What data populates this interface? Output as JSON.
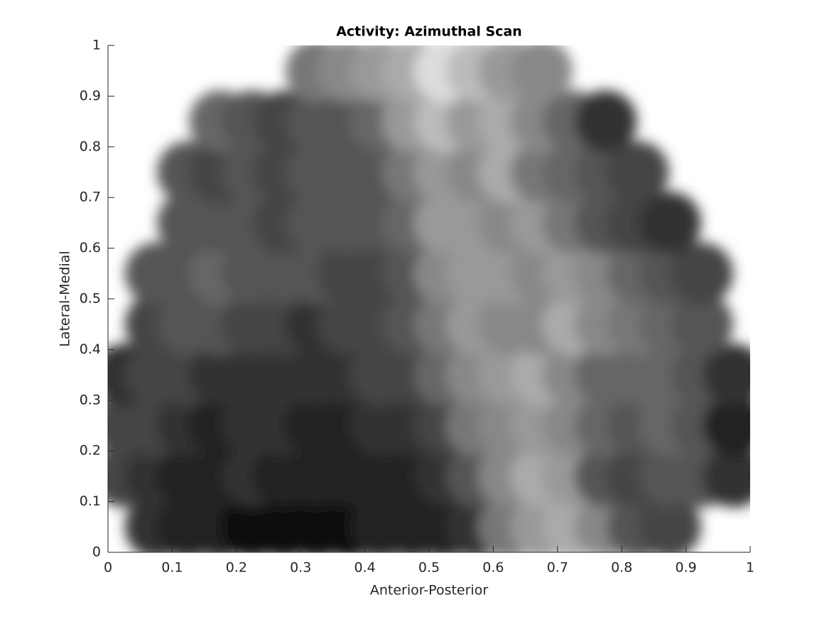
{
  "chart_data": {
    "type": "scatter",
    "title": "Activity: Azimuthal Scan",
    "xlabel": "Anterior-Posterior",
    "ylabel": "Lateral-Medial",
    "xlim": [
      0,
      1
    ],
    "ylim": [
      0,
      1
    ],
    "xticks": [
      0,
      0.1,
      0.2,
      0.3,
      0.4,
      0.5,
      0.6,
      0.7,
      0.8,
      0.9,
      1
    ],
    "yticks": [
      0,
      0.1,
      0.2,
      0.3,
      0.4,
      0.5,
      0.6,
      0.7,
      0.8,
      0.9,
      1
    ],
    "grid": false,
    "x": [
      0.075,
      0.125,
      0.175,
      0.225,
      0.275,
      0.325,
      0.375,
      0.425,
      0.475,
      0.525,
      0.575,
      0.625,
      0.675,
      0.725,
      0.775,
      0.825,
      0.875,
      0.025,
      0.075,
      0.125,
      0.175,
      0.225,
      0.275,
      0.325,
      0.375,
      0.425,
      0.475,
      0.525,
      0.575,
      0.625,
      0.675,
      0.725,
      0.775,
      0.825,
      0.875,
      0.925,
      0.975,
      0.025,
      0.075,
      0.125,
      0.175,
      0.225,
      0.275,
      0.325,
      0.375,
      0.425,
      0.475,
      0.525,
      0.575,
      0.625,
      0.675,
      0.725,
      0.775,
      0.825,
      0.875,
      0.925,
      0.975,
      0.025,
      0.075,
      0.125,
      0.175,
      0.225,
      0.275,
      0.325,
      0.375,
      0.425,
      0.475,
      0.525,
      0.575,
      0.625,
      0.675,
      0.725,
      0.775,
      0.825,
      0.875,
      0.925,
      0.975,
      0.075,
      0.125,
      0.175,
      0.225,
      0.275,
      0.325,
      0.375,
      0.425,
      0.475,
      0.525,
      0.575,
      0.625,
      0.675,
      0.725,
      0.775,
      0.825,
      0.875,
      0.925,
      0.075,
      0.125,
      0.175,
      0.225,
      0.275,
      0.325,
      0.375,
      0.425,
      0.475,
      0.525,
      0.575,
      0.625,
      0.675,
      0.725,
      0.775,
      0.825,
      0.875,
      0.925,
      0.125,
      0.175,
      0.225,
      0.275,
      0.325,
      0.375,
      0.425,
      0.475,
      0.525,
      0.575,
      0.625,
      0.675,
      0.725,
      0.775,
      0.825,
      0.875,
      0.125,
      0.175,
      0.225,
      0.275,
      0.325,
      0.375,
      0.425,
      0.475,
      0.525,
      0.575,
      0.625,
      0.675,
      0.725,
      0.775,
      0.825,
      0.175,
      0.225,
      0.275,
      0.325,
      0.375,
      0.425,
      0.475,
      0.525,
      0.575,
      0.625,
      0.675,
      0.725,
      0.775,
      0.325,
      0.375,
      0.425,
      0.475,
      0.525,
      0.575,
      0.625,
      0.675
    ],
    "y": [
      0.05,
      0.05,
      0.05,
      0.05,
      0.05,
      0.05,
      0.05,
      0.05,
      0.05,
      0.05,
      0.05,
      0.05,
      0.05,
      0.05,
      0.05,
      0.05,
      0.05,
      0.15,
      0.15,
      0.15,
      0.15,
      0.15,
      0.15,
      0.15,
      0.15,
      0.15,
      0.15,
      0.15,
      0.15,
      0.15,
      0.15,
      0.15,
      0.15,
      0.15,
      0.15,
      0.15,
      0.15,
      0.25,
      0.25,
      0.25,
      0.25,
      0.25,
      0.25,
      0.25,
      0.25,
      0.25,
      0.25,
      0.25,
      0.25,
      0.25,
      0.25,
      0.25,
      0.25,
      0.25,
      0.25,
      0.25,
      0.25,
      0.35,
      0.35,
      0.35,
      0.35,
      0.35,
      0.35,
      0.35,
      0.35,
      0.35,
      0.35,
      0.35,
      0.35,
      0.35,
      0.35,
      0.35,
      0.35,
      0.35,
      0.35,
      0.35,
      0.35,
      0.45,
      0.45,
      0.45,
      0.45,
      0.45,
      0.45,
      0.45,
      0.45,
      0.45,
      0.45,
      0.45,
      0.45,
      0.45,
      0.45,
      0.45,
      0.45,
      0.45,
      0.45,
      0.55,
      0.55,
      0.55,
      0.55,
      0.55,
      0.55,
      0.55,
      0.55,
      0.55,
      0.55,
      0.55,
      0.55,
      0.55,
      0.55,
      0.55,
      0.55,
      0.55,
      0.55,
      0.65,
      0.65,
      0.65,
      0.65,
      0.65,
      0.65,
      0.65,
      0.65,
      0.65,
      0.65,
      0.65,
      0.65,
      0.65,
      0.65,
      0.65,
      0.65,
      0.75,
      0.75,
      0.75,
      0.75,
      0.75,
      0.75,
      0.75,
      0.75,
      0.75,
      0.75,
      0.75,
      0.75,
      0.75,
      0.75,
      0.75,
      0.85,
      0.85,
      0.85,
      0.85,
      0.85,
      0.85,
      0.85,
      0.85,
      0.85,
      0.85,
      0.85,
      0.85,
      0.85,
      0.95,
      0.95,
      0.95,
      0.95,
      0.95,
      0.95,
      0.95,
      0.95
    ],
    "colors": [
      "#333",
      "#222",
      "#222",
      "#111",
      "#111",
      "#111",
      "#111",
      "#222",
      "#222",
      "#222",
      "#333",
      "#777",
      "#999",
      "#aaa",
      "#888",
      "#555",
      "#444",
      "#444",
      "#333",
      "#222",
      "#222",
      "#333",
      "#222",
      "#222",
      "#222",
      "#222",
      "#222",
      "#333",
      "#555",
      "#888",
      "#aaa",
      "#999",
      "#555",
      "#444",
      "#555",
      "#555",
      "#333",
      "#444",
      "#444",
      "#333",
      "#222",
      "#333",
      "#333",
      "#222",
      "#222",
      "#333",
      "#333",
      "#444",
      "#777",
      "#888",
      "#999",
      "#888",
      "#666",
      "#555",
      "#666",
      "#555",
      "#222",
      "#333",
      "#444",
      "#444",
      "#333",
      "#333",
      "#333",
      "#333",
      "#333",
      "#444",
      "#444",
      "#666",
      "#888",
      "#999",
      "#aaa",
      "#888",
      "#666",
      "#666",
      "#666",
      "#555",
      "#333",
      "#444",
      "#555",
      "#555",
      "#444",
      "#444",
      "#333",
      "#444",
      "#444",
      "#555",
      "#777",
      "#999",
      "#888",
      "#888",
      "#aaa",
      "#888",
      "#777",
      "#666",
      "#555",
      "#555",
      "#555",
      "#666",
      "#555",
      "#555",
      "#555",
      "#444",
      "#444",
      "#555",
      "#888",
      "#999",
      "#999",
      "#888",
      "#999",
      "#888",
      "#666",
      "#555",
      "#444",
      "#555",
      "#555",
      "#555",
      "#444",
      "#555",
      "#555",
      "#555",
      "#666",
      "#999",
      "#999",
      "#888",
      "#999",
      "#777",
      "#555",
      "#444",
      "#333",
      "#555",
      "#444",
      "#555",
      "#444",
      "#555",
      "#555",
      "#555",
      "#777",
      "#999",
      "#888",
      "#aaa",
      "#777",
      "#666",
      "#555",
      "#444",
      "#666",
      "#555",
      "#444",
      "#555",
      "#555",
      "#666",
      "#999",
      "#bbb",
      "#999",
      "#aaa",
      "#888",
      "#666",
      "#333",
      "#777",
      "#888",
      "#999",
      "#aaa",
      "#ddd",
      "#bbb",
      "#999",
      "#888"
    ]
  }
}
